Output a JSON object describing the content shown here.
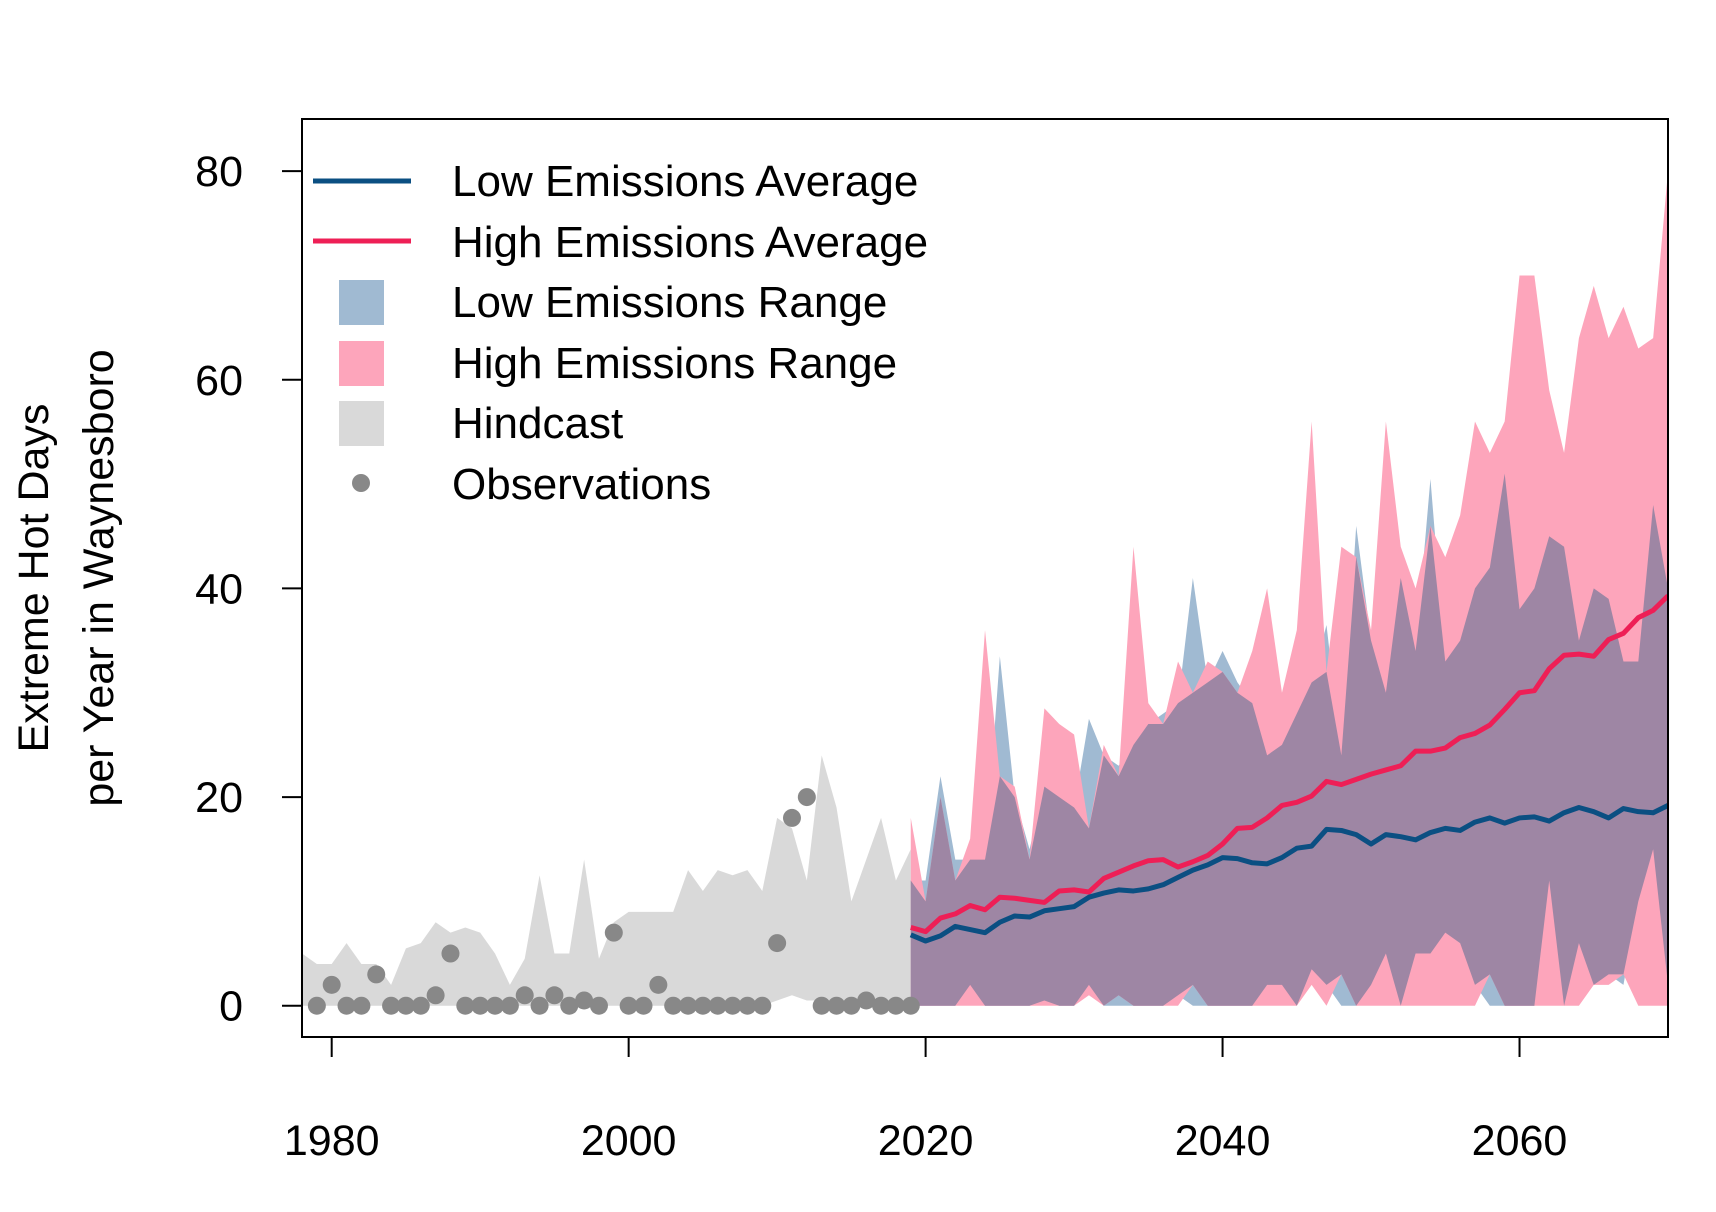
{
  "chart_data": {
    "type": "line",
    "title": "",
    "ylabel_line1": "Extreme Hot Days",
    "ylabel_line2": "per Year in Waynesboro",
    "xlabel": "",
    "xlim": [
      1978,
      2070
    ],
    "ylim": [
      -3,
      85
    ],
    "x_ticks": [
      1980,
      2000,
      2020,
      2040,
      2060
    ],
    "y_ticks": [
      0,
      20,
      40,
      60,
      80
    ],
    "grid": false,
    "legend_position": "top-left",
    "legend": {
      "low_avg": "Low Emissions Average",
      "high_avg": "High Emissions Average",
      "low_range": "Low Emissions Range",
      "high_range": "High Emissions Range",
      "hindcast": "Hindcast",
      "observations": "Observations"
    },
    "colors": {
      "low_avg": "#0b4f82",
      "high_avg": "#ee1f56",
      "low_range": "#a0bad2",
      "high_range": "#fda5bb",
      "overlap": "#9e86a4",
      "hindcast": "#d9d9d9",
      "observations": "#888888"
    },
    "hindcast": {
      "x": [
        1978,
        1979,
        1980,
        1981,
        1982,
        1983,
        1984,
        1985,
        1986,
        1987,
        1988,
        1989,
        1990,
        1991,
        1992,
        1993,
        1994,
        1995,
        1996,
        1997,
        1998,
        1999,
        2000,
        2001,
        2002,
        2003,
        2004,
        2005,
        2006,
        2007,
        2008,
        2009,
        2010,
        2011,
        2012,
        2013,
        2014,
        2015,
        2016,
        2017,
        2018,
        2019
      ],
      "upper": [
        5,
        4,
        4,
        6,
        4,
        4,
        2,
        5.5,
        6,
        8,
        7,
        7.5,
        7,
        5,
        2,
        4.5,
        12.5,
        5,
        5,
        14,
        4.5,
        8,
        9,
        9,
        9,
        9,
        13,
        11,
        13,
        12.5,
        13,
        11,
        18,
        17,
        12,
        24,
        19,
        10,
        14,
        18,
        12,
        15
      ],
      "lower": [
        0,
        0,
        0,
        0,
        0,
        0,
        0,
        0,
        0,
        0,
        0,
        0,
        0,
        0,
        0,
        0,
        0,
        0,
        0,
        0,
        0,
        0,
        0,
        0,
        0,
        0,
        0,
        0,
        0,
        0,
        0,
        0,
        0.5,
        1,
        0.5,
        0.5,
        0.5,
        0,
        0,
        0,
        0,
        0
      ]
    },
    "observations": {
      "x": [
        1979,
        1980,
        1981,
        1982,
        1983,
        1984,
        1985,
        1986,
        1987,
        1988,
        1989,
        1990,
        1991,
        1992,
        1993,
        1994,
        1995,
        1996,
        1997,
        1998,
        1999,
        2000,
        2001,
        2002,
        2003,
        2004,
        2005,
        2006,
        2007,
        2008,
        2009,
        2010,
        2011,
        2012,
        2013,
        2014,
        2015,
        2016,
        2017,
        2018,
        2019
      ],
      "y": [
        0,
        2,
        0,
        0,
        3,
        0,
        0,
        0,
        1,
        5,
        0,
        0,
        0,
        0,
        1,
        0,
        1,
        0,
        0.5,
        0,
        7,
        0,
        0,
        2,
        0,
        0,
        0,
        0,
        0,
        0,
        0,
        6,
        18,
        20,
        0,
        0,
        0,
        0.5,
        0,
        0,
        0
      ]
    },
    "low_emissions": {
      "x": [
        2019,
        2020,
        2021,
        2022,
        2023,
        2024,
        2025,
        2026,
        2027,
        2028,
        2029,
        2030,
        2031,
        2032,
        2033,
        2034,
        2035,
        2036,
        2037,
        2038,
        2039,
        2040,
        2041,
        2042,
        2043,
        2044,
        2045,
        2046,
        2047,
        2048,
        2049,
        2050,
        2051,
        2052,
        2053,
        2054,
        2055,
        2056,
        2057,
        2058,
        2059,
        2060,
        2061,
        2062,
        2063,
        2064,
        2065,
        2066,
        2067,
        2068,
        2069,
        2070
      ],
      "upper": [
        12,
        12,
        22,
        14,
        14,
        14,
        33.5,
        20,
        15,
        21,
        20,
        19,
        27.5,
        24,
        23,
        25,
        27,
        28,
        29,
        41,
        31,
        34,
        31,
        29,
        24,
        25,
        28,
        31,
        36.5,
        24,
        46,
        35,
        30,
        41,
        34,
        50.5,
        33,
        35,
        40,
        42,
        51,
        38,
        40,
        45,
        44,
        35,
        40,
        39,
        33,
        33,
        48,
        40
      ],
      "lower": [
        0,
        0,
        0,
        0,
        2,
        0,
        0,
        0,
        0,
        0.5,
        0,
        0,
        2,
        0,
        0,
        0,
        0,
        0,
        1,
        0,
        0,
        0,
        0,
        0,
        2,
        2,
        0,
        3.5,
        2,
        0,
        0,
        2,
        5,
        0,
        5,
        5,
        7,
        6,
        2,
        0,
        0,
        0,
        0,
        12,
        0,
        6,
        2,
        3,
        2,
        10,
        15,
        2
      ],
      "avg": [
        6.8,
        6.2,
        6.7,
        7.6,
        7.3,
        7.0,
        8.0,
        8.6,
        8.5,
        9.1,
        9.3,
        9.5,
        10.4,
        10.8,
        11.1,
        11.0,
        11.2,
        11.6,
        12.3,
        13.0,
        13.5,
        14.2,
        14.1,
        13.7,
        13.6,
        14.2,
        15.1,
        15.3,
        16.9,
        16.8,
        16.4,
        15.5,
        16.4,
        16.2,
        15.9,
        16.6,
        17.0,
        16.8,
        17.6,
        18.0,
        17.5,
        18.0,
        18.1,
        17.7,
        18.5,
        19.0,
        18.6,
        18.0,
        18.9,
        18.6,
        18.5,
        19.2
      ]
    },
    "high_emissions": {
      "x": [
        2019,
        2020,
        2021,
        2022,
        2023,
        2024,
        2025,
        2026,
        2027,
        2028,
        2029,
        2030,
        2031,
        2032,
        2033,
        2034,
        2035,
        2036,
        2037,
        2038,
        2039,
        2040,
        2041,
        2042,
        2043,
        2044,
        2045,
        2046,
        2047,
        2048,
        2049,
        2050,
        2051,
        2052,
        2053,
        2054,
        2055,
        2056,
        2057,
        2058,
        2059,
        2060,
        2061,
        2062,
        2063,
        2064,
        2065,
        2066,
        2067,
        2068,
        2069,
        2070
      ],
      "upper": [
        18,
        10,
        20,
        12,
        16,
        36,
        22,
        21,
        14,
        28.5,
        27,
        26,
        17,
        25,
        22,
        44,
        29,
        27,
        33,
        30,
        33,
        32,
        30,
        34,
        40,
        30,
        36,
        56,
        32,
        44,
        43,
        36,
        56,
        44,
        40,
        46,
        43,
        47,
        56,
        53,
        56,
        70,
        70,
        59,
        53,
        64,
        69,
        64,
        67,
        63,
        64,
        80
      ],
      "lower": [
        0,
        0,
        0,
        0,
        0,
        0,
        0,
        0,
        0,
        0,
        0,
        0,
        1,
        0,
        1,
        0,
        0,
        0,
        0,
        2,
        0,
        0,
        0,
        0,
        0,
        0,
        0,
        2,
        0,
        3,
        0,
        0,
        0,
        0,
        0,
        0,
        0,
        0,
        0,
        3,
        0,
        0,
        0,
        0,
        0,
        0,
        2,
        2,
        3,
        0,
        0,
        0
      ],
      "avg": [
        7.5,
        7.1,
        8.4,
        8.8,
        9.6,
        9.2,
        10.4,
        10.3,
        10.1,
        9.9,
        11.0,
        11.1,
        10.9,
        12.2,
        12.8,
        13.4,
        13.9,
        14.0,
        13.3,
        13.8,
        14.4,
        15.5,
        17.0,
        17.1,
        18.0,
        19.2,
        19.5,
        20.1,
        21.5,
        21.2,
        21.7,
        22.2,
        22.6,
        23.0,
        24.4,
        24.4,
        24.7,
        25.7,
        26.1,
        26.9,
        28.4,
        30.0,
        30.2,
        32.3,
        33.6,
        33.7,
        33.5,
        35.1,
        35.7,
        37.2,
        37.9,
        39.3
      ]
    }
  }
}
